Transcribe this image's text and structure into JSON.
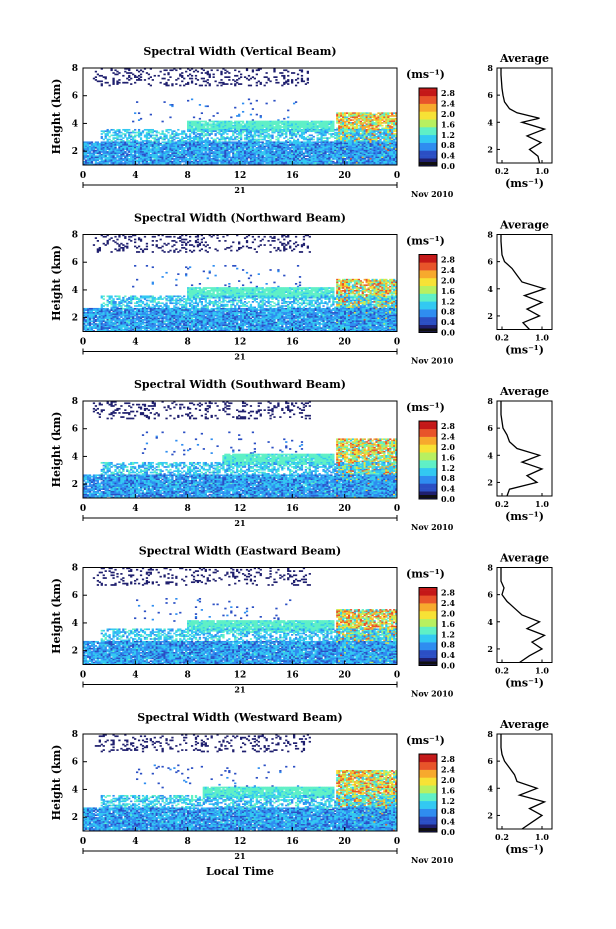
{
  "figure": {
    "date_day": "21",
    "date_label": "Nov 2010",
    "xlabel": "Local Time",
    "colorbar_unit": "(ms⁻¹)",
    "profile_xlabel": "(ms⁻¹)",
    "profile_title": "Average"
  },
  "chart_data": [
    {
      "type": "heatmap",
      "title": "Spectral Width (Vertical Beam)",
      "ylabel": "Height (km)",
      "x_ticks": [
        "0",
        "4",
        "8",
        "12",
        "16",
        "20",
        "0"
      ],
      "xlim": [
        0,
        24
      ],
      "ylim": [
        1,
        8
      ],
      "y_ticks": [
        "2",
        "4",
        "6",
        "8"
      ],
      "colorbar": {
        "ticks": [
          "0.0",
          "0.4",
          "0.8",
          "1.2",
          "1.6",
          "2.0",
          "2.4",
          "2.8"
        ],
        "range": [
          0,
          3.0
        ]
      },
      "profile": {
        "title": "Average",
        "x_ticks": [
          "0.2",
          "1.0"
        ],
        "xlim": [
          0.1,
          1.2
        ],
        "y_ticks": [
          "2",
          "4",
          "6",
          "8"
        ],
        "ylim": [
          1,
          8
        ],
        "points": [
          [
            0.95,
            1.0
          ],
          [
            0.92,
            1.5
          ],
          [
            0.75,
            2.0
          ],
          [
            0.98,
            2.5
          ],
          [
            0.7,
            3.0
          ],
          [
            1.05,
            3.5
          ],
          [
            0.6,
            4.0
          ],
          [
            0.95,
            4.3
          ],
          [
            0.5,
            4.7
          ],
          [
            0.35,
            5.0
          ],
          [
            0.25,
            5.5
          ],
          [
            0.22,
            6.0
          ],
          [
            0.2,
            6.5
          ],
          [
            0.19,
            7.0
          ],
          [
            0.18,
            7.5
          ],
          [
            0.18,
            8.0
          ]
        ]
      },
      "colors": {
        "colorscale": [
          "#1f1f6e",
          "#2b4fc4",
          "#2f8df0",
          "#33c9f2",
          "#5ff0c6",
          "#b8f060",
          "#f7e235",
          "#f7a92d",
          "#e8542a",
          "#c41818"
        ]
      }
    },
    {
      "type": "heatmap",
      "title": "Spectral Width (Northward Beam)",
      "ylabel": "Height (km)",
      "x_ticks": [
        "0",
        "4",
        "8",
        "12",
        "16",
        "20",
        "0"
      ],
      "xlim": [
        0,
        24
      ],
      "ylim": [
        1,
        8
      ],
      "y_ticks": [
        "2",
        "4",
        "6",
        "8"
      ],
      "colorbar": {
        "ticks": [
          "0.0",
          "0.4",
          "0.8",
          "1.2",
          "1.6",
          "2.0",
          "2.4",
          "2.8"
        ],
        "range": [
          0,
          3.0
        ]
      },
      "profile": {
        "title": "Average",
        "x_ticks": [
          "0.2",
          "1.0"
        ],
        "xlim": [
          0.1,
          1.2
        ],
        "y_ticks": [
          "2",
          "4",
          "6",
          "8"
        ],
        "ylim": [
          1,
          8
        ],
        "points": [
          [
            0.75,
            1.0
          ],
          [
            0.62,
            1.5
          ],
          [
            0.95,
            2.0
          ],
          [
            0.7,
            2.5
          ],
          [
            1.0,
            3.0
          ],
          [
            0.65,
            3.5
          ],
          [
            1.05,
            4.0
          ],
          [
            0.6,
            4.5
          ],
          [
            0.5,
            5.0
          ],
          [
            0.4,
            5.5
          ],
          [
            0.25,
            6.0
          ],
          [
            0.2,
            6.5
          ],
          [
            0.19,
            7.0
          ],
          [
            0.18,
            7.5
          ],
          [
            0.18,
            8.0
          ]
        ]
      }
    },
    {
      "type": "heatmap",
      "title": "Spectral Width (Southward Beam)",
      "ylabel": "Height (km)",
      "x_ticks": [
        "0",
        "4",
        "8",
        "12",
        "16",
        "20",
        "0"
      ],
      "xlim": [
        0,
        24
      ],
      "ylim": [
        1,
        8
      ],
      "y_ticks": [
        "2",
        "4",
        "6",
        "8"
      ],
      "colorbar": {
        "ticks": [
          "0.0",
          "0.4",
          "0.8",
          "1.2",
          "1.6",
          "2.0",
          "2.4",
          "2.8"
        ],
        "range": [
          0,
          3.0
        ]
      },
      "profile": {
        "title": "Average",
        "x_ticks": [
          "0.2",
          "1.0"
        ],
        "xlim": [
          0.1,
          1.2
        ],
        "y_ticks": [
          "2",
          "4",
          "6",
          "8"
        ],
        "ylim": [
          1,
          8
        ],
        "points": [
          [
            0.3,
            1.0
          ],
          [
            0.35,
            1.5
          ],
          [
            0.9,
            2.0
          ],
          [
            0.7,
            2.5
          ],
          [
            1.0,
            3.0
          ],
          [
            0.6,
            3.5
          ],
          [
            0.95,
            4.0
          ],
          [
            0.5,
            4.5
          ],
          [
            0.35,
            5.0
          ],
          [
            0.3,
            5.5
          ],
          [
            0.22,
            6.0
          ],
          [
            0.2,
            6.5
          ],
          [
            0.18,
            7.0
          ],
          [
            0.18,
            7.5
          ],
          [
            0.18,
            8.0
          ]
        ]
      }
    },
    {
      "type": "heatmap",
      "title": "Spectral Width (Eastward Beam)",
      "ylabel": "Height (km)",
      "x_ticks": [
        "0",
        "4",
        "8",
        "12",
        "16",
        "20",
        "0"
      ],
      "xlim": [
        0,
        24
      ],
      "ylim": [
        1,
        8
      ],
      "y_ticks": [
        "2",
        "4",
        "6",
        "8"
      ],
      "colorbar": {
        "ticks": [
          "0.0",
          "0.4",
          "0.8",
          "1.2",
          "1.6",
          "2.0",
          "2.4",
          "2.8"
        ],
        "range": [
          0,
          3.0
        ]
      },
      "profile": {
        "title": "Average",
        "x_ticks": [
          "0.2",
          "1.0"
        ],
        "xlim": [
          0.1,
          1.2
        ],
        "y_ticks": [
          "2",
          "4",
          "6",
          "8"
        ],
        "ylim": [
          1,
          8
        ],
        "points": [
          [
            0.55,
            1.0
          ],
          [
            0.75,
            1.5
          ],
          [
            1.0,
            2.0
          ],
          [
            0.8,
            2.5
          ],
          [
            1.05,
            3.0
          ],
          [
            0.7,
            3.5
          ],
          [
            0.95,
            4.0
          ],
          [
            0.6,
            4.5
          ],
          [
            0.45,
            5.0
          ],
          [
            0.3,
            5.5
          ],
          [
            0.2,
            6.0
          ],
          [
            0.24,
            6.5
          ],
          [
            0.18,
            7.0
          ],
          [
            0.18,
            7.5
          ],
          [
            0.18,
            8.0
          ]
        ]
      }
    },
    {
      "type": "heatmap",
      "title": "Spectral Width (Westward Beam)",
      "ylabel": "Height (km)",
      "x_ticks": [
        "0",
        "4",
        "8",
        "12",
        "16",
        "20",
        "0"
      ],
      "xlim": [
        0,
        24
      ],
      "ylim": [
        1,
        8
      ],
      "y_ticks": [
        "2",
        "4",
        "6",
        "8"
      ],
      "colorbar": {
        "ticks": [
          "0.0",
          "0.4",
          "0.8",
          "1.2",
          "1.6",
          "2.0",
          "2.4",
          "2.8"
        ],
        "range": [
          0,
          3.0
        ]
      },
      "profile": {
        "title": "Average",
        "x_ticks": [
          "0.2",
          "1.0"
        ],
        "xlim": [
          0.1,
          1.2
        ],
        "y_ticks": [
          "2",
          "4",
          "6",
          "8"
        ],
        "ylim": [
          1,
          8
        ],
        "points": [
          [
            0.6,
            1.0
          ],
          [
            0.8,
            1.5
          ],
          [
            1.0,
            2.0
          ],
          [
            0.75,
            2.5
          ],
          [
            1.05,
            3.0
          ],
          [
            0.55,
            3.5
          ],
          [
            0.9,
            4.0
          ],
          [
            0.5,
            4.5
          ],
          [
            0.45,
            5.0
          ],
          [
            0.35,
            5.5
          ],
          [
            0.25,
            6.0
          ],
          [
            0.2,
            6.5
          ],
          [
            0.18,
            7.0
          ],
          [
            0.18,
            7.5
          ],
          [
            0.18,
            8.0
          ]
        ]
      }
    }
  ]
}
